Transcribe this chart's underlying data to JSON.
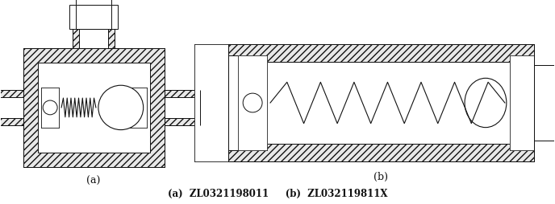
{
  "bg_color": "#ffffff",
  "label_a": "(a)",
  "label_b": "(b)",
  "caption": "(a)  ZL0321198011     (b)  ZL032119811X",
  "fig_width": 6.88,
  "fig_height": 2.55,
  "dpi": 100,
  "text_color": "#111111",
  "hatch_color": "#555555",
  "line_color": "#111111",
  "hatch_pattern": "////",
  "hatch_fc": "#e8e8e8"
}
